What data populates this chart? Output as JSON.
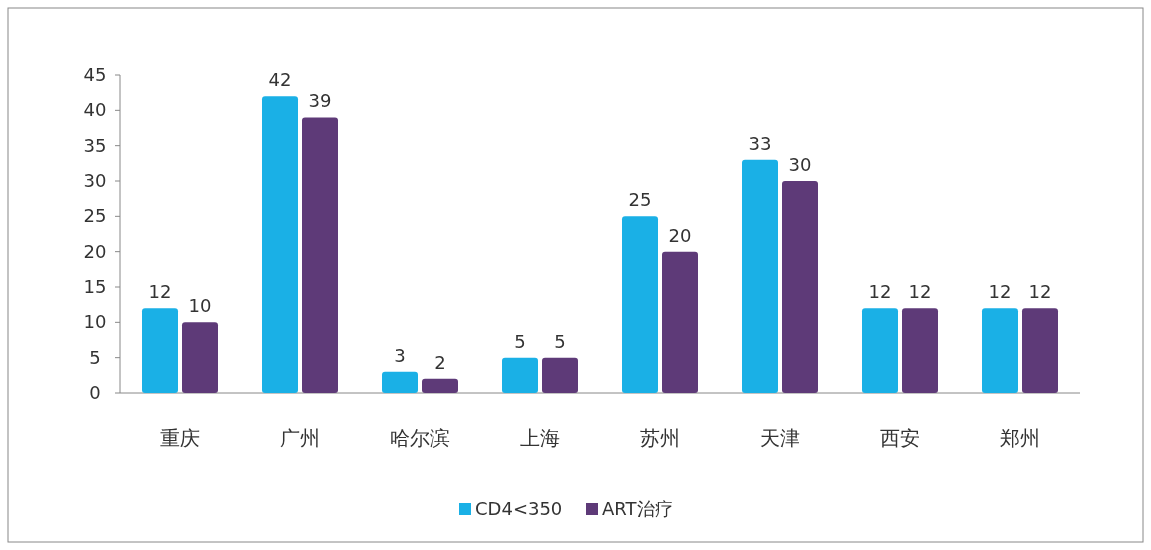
{
  "chart_data": {
    "type": "bar",
    "categories": [
      "重庆",
      "广州",
      "哈尔滨",
      "上海",
      "苏州",
      "天津",
      "西安",
      "郑州"
    ],
    "series": [
      {
        "name": "CD4<350",
        "color": "#1ab0e6",
        "values": [
          12,
          42,
          3,
          5,
          25,
          33,
          12,
          12
        ]
      },
      {
        "name": "ART治疗",
        "color": "#5e3a78",
        "values": [
          10,
          39,
          2,
          5,
          20,
          30,
          12,
          12
        ]
      }
    ],
    "ylim": [
      0,
      45
    ],
    "yticks": [
      0,
      5,
      10,
      15,
      20,
      25,
      30,
      35,
      40,
      45
    ],
    "data_labels": true,
    "legend": "bottom"
  }
}
